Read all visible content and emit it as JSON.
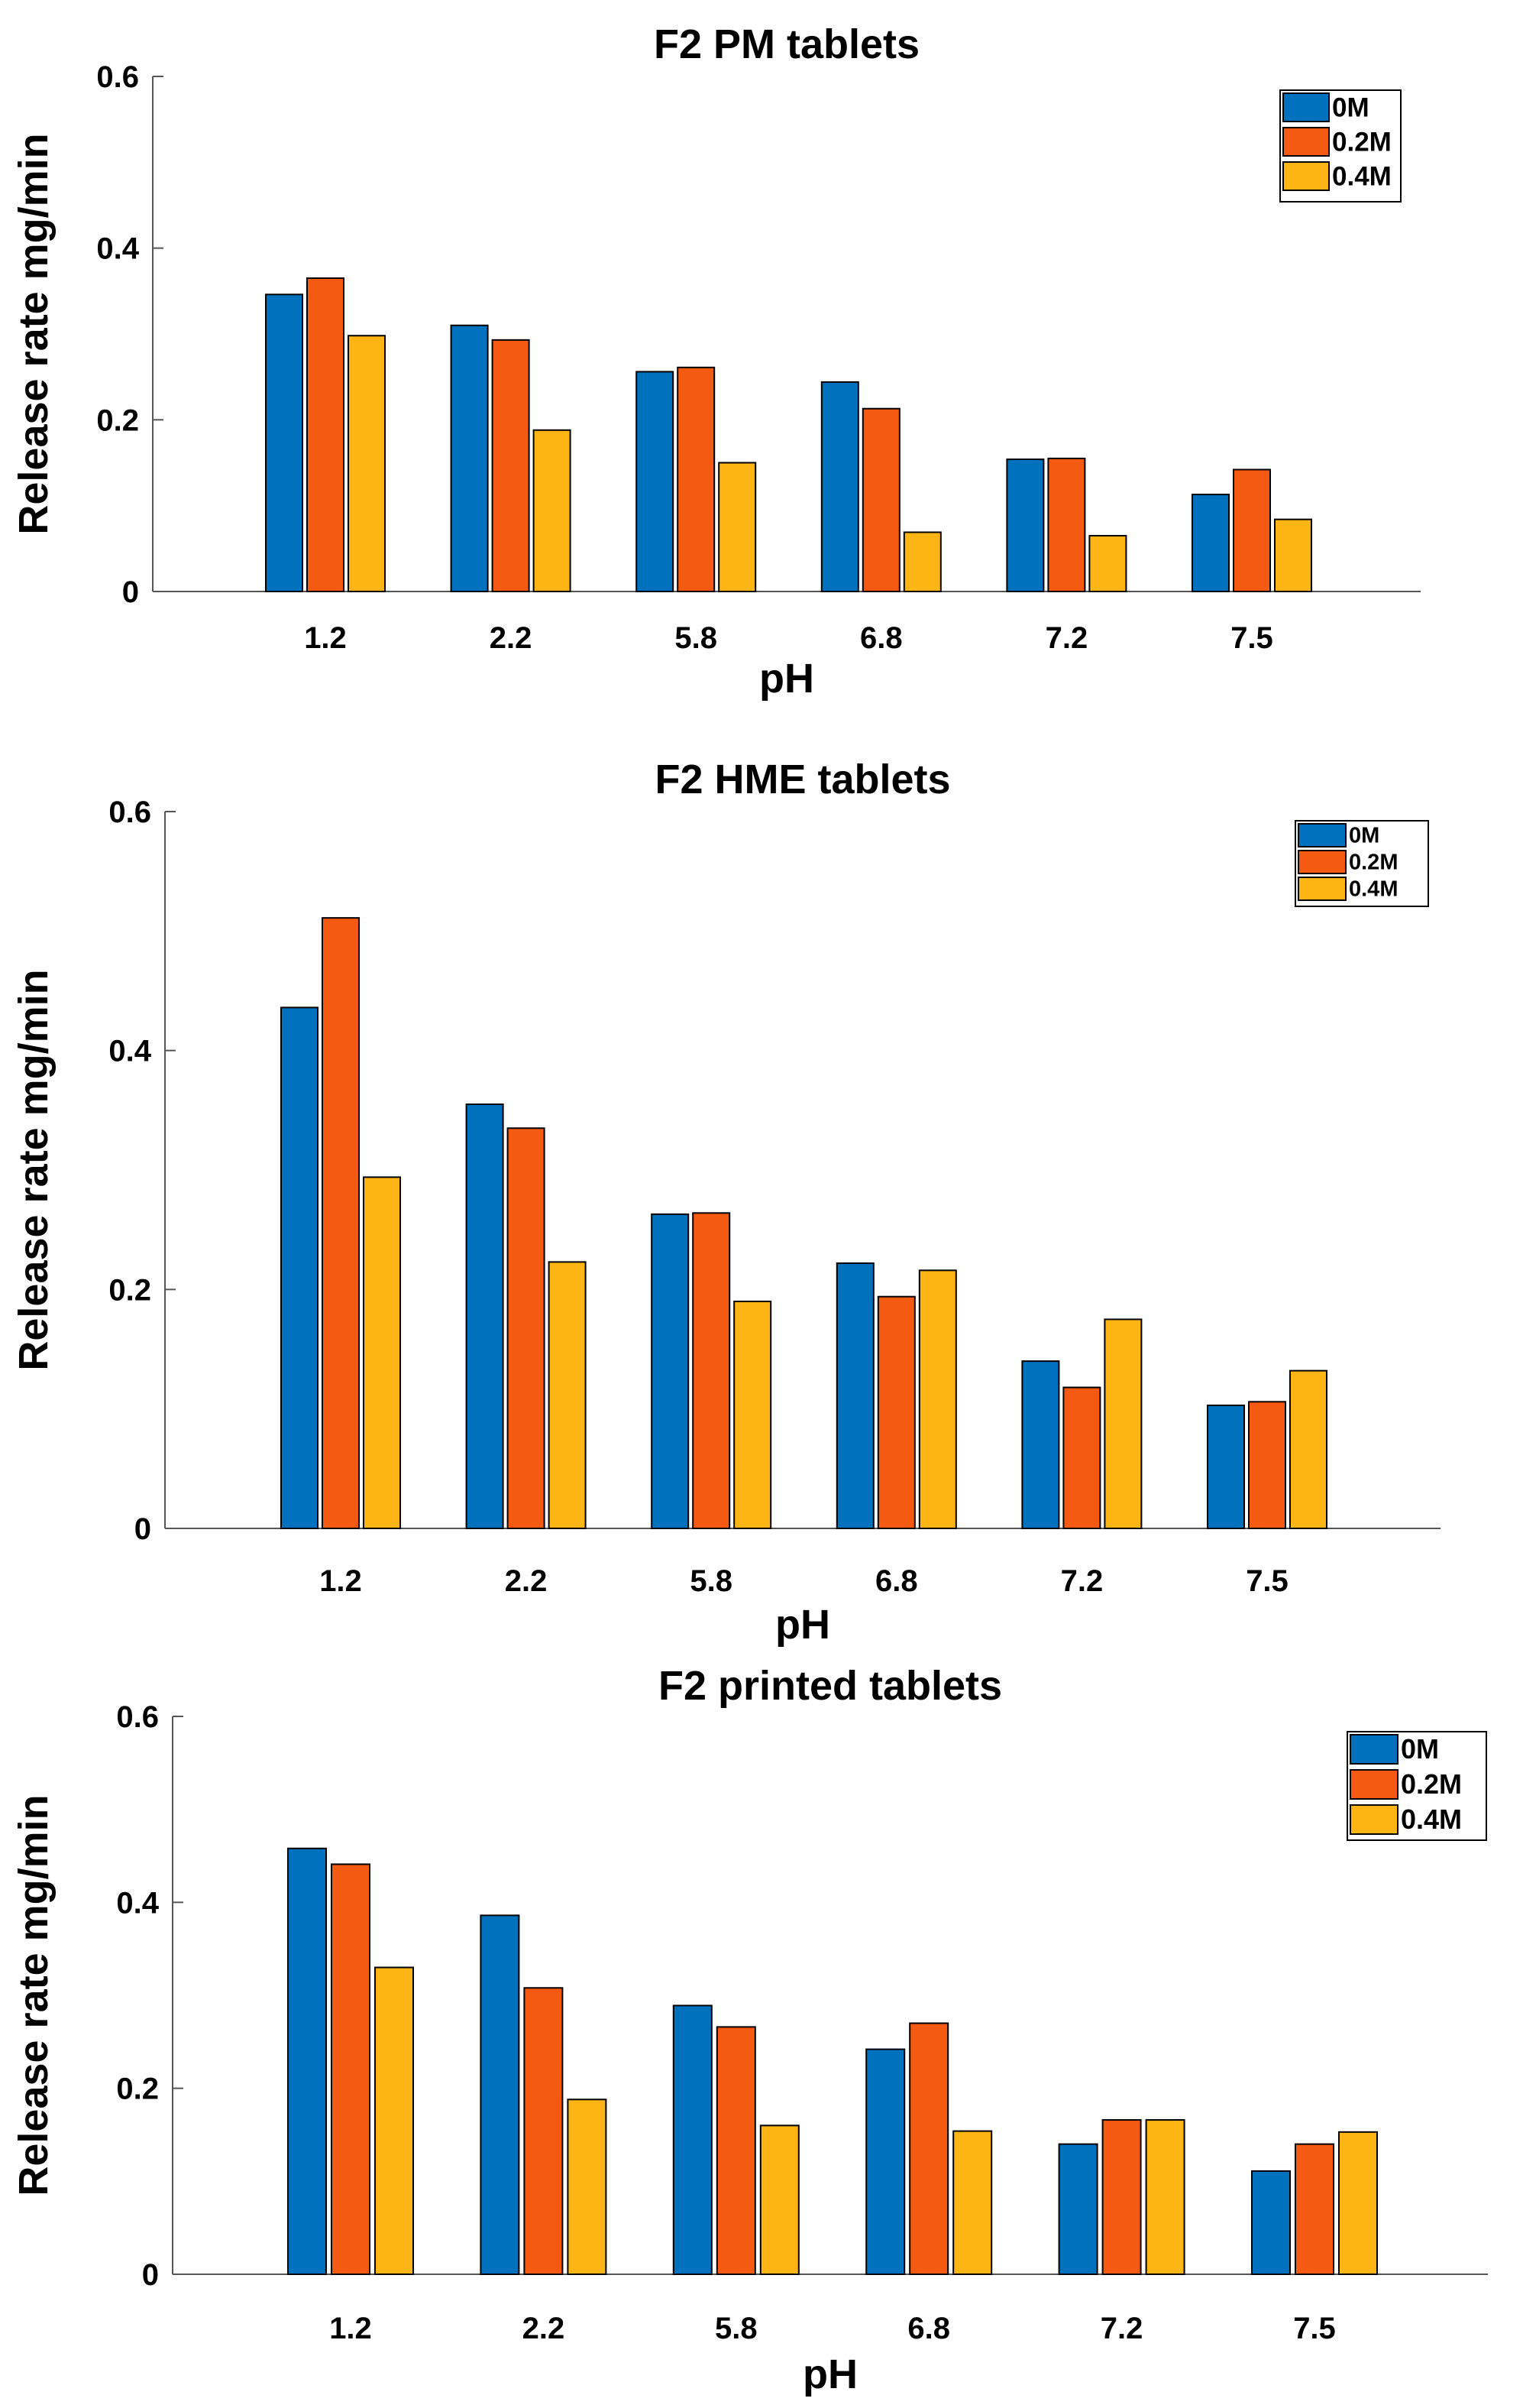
{
  "colors": {
    "0M": "#0072BD",
    "0.2M": "#F55A12",
    "0.4M": "#FDB515",
    "axis": "#555555"
  },
  "chart_data": [
    {
      "type": "bar",
      "title": "F2 PM tablets",
      "xlabel": "pH",
      "ylabel": "Release rate mg/min",
      "categories": [
        "1.2",
        "2.2",
        "5.8",
        "6.8",
        "7.2",
        "7.5"
      ],
      "ylim": [
        0,
        0.6
      ],
      "yticks": [
        0,
        0.2,
        0.4,
        0.6
      ],
      "ytick_labels": [
        "0",
        "0.2",
        "0.4",
        "0.6"
      ],
      "legend_position": "top-right",
      "series": [
        {
          "name": "0M",
          "values": [
            0.346,
            0.31,
            0.256,
            0.244,
            0.154,
            0.113
          ]
        },
        {
          "name": "0.2M",
          "values": [
            0.365,
            0.293,
            0.261,
            0.213,
            0.155,
            0.142
          ]
        },
        {
          "name": "0.4M",
          "values": [
            0.298,
            0.188,
            0.15,
            0.069,
            0.065,
            0.084
          ]
        }
      ]
    },
    {
      "type": "bar",
      "title": "F2 HME tablets",
      "xlabel": "pH",
      "ylabel": "Release rate mg/min",
      "categories": [
        "1.2",
        "2.2",
        "5.8",
        "6.8",
        "7.2",
        "7.5"
      ],
      "ylim": [
        0,
        0.6
      ],
      "yticks": [
        0,
        0.2,
        0.4,
        0.6
      ],
      "ytick_labels": [
        "0",
        "0.2",
        "0.4",
        "0.6"
      ],
      "legend_position": "top-right",
      "series": [
        {
          "name": "0M",
          "values": [
            0.436,
            0.355,
            0.263,
            0.222,
            0.14,
            0.103
          ]
        },
        {
          "name": "0.2M",
          "values": [
            0.511,
            0.335,
            0.264,
            0.194,
            0.118,
            0.106
          ]
        },
        {
          "name": "0.4M",
          "values": [
            0.294,
            0.223,
            0.19,
            0.216,
            0.175,
            0.132
          ]
        }
      ]
    },
    {
      "type": "bar",
      "title": "F2 printed tablets",
      "xlabel": "pH",
      "ylabel": "Release rate mg/min",
      "categories": [
        "1.2",
        "2.2",
        "5.8",
        "6.8",
        "7.2",
        "7.5"
      ],
      "ylim": [
        0,
        0.6
      ],
      "yticks": [
        0,
        0.2,
        0.4,
        0.6
      ],
      "ytick_labels": [
        "0",
        "0.2",
        "0.4",
        "0.6"
      ],
      "legend_position": "top-right",
      "series": [
        {
          "name": "0M",
          "values": [
            0.458,
            0.386,
            0.289,
            0.242,
            0.14,
            0.111
          ]
        },
        {
          "name": "0.2M",
          "values": [
            0.441,
            0.308,
            0.266,
            0.27,
            0.166,
            0.14
          ]
        },
        {
          "name": "0.4M",
          "values": [
            0.33,
            0.188,
            0.16,
            0.154,
            0.166,
            0.153
          ]
        }
      ]
    }
  ]
}
